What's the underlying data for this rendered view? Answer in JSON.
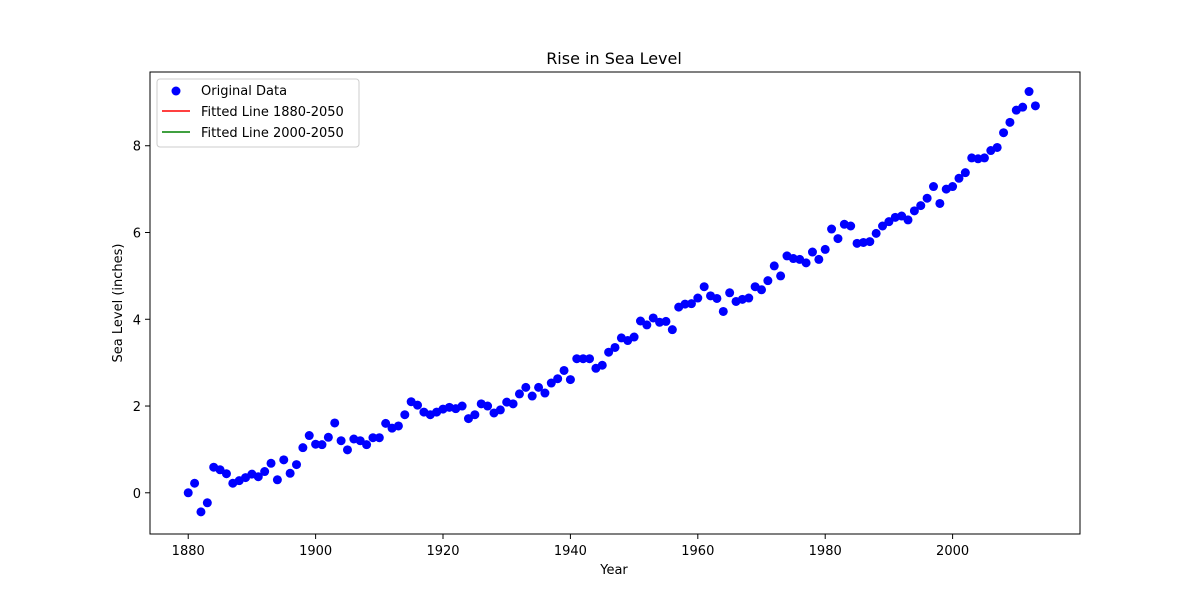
{
  "chart_data": {
    "type": "scatter",
    "title": "Rise in Sea Level",
    "xlabel": "Year",
    "ylabel": "Sea Level (inches)",
    "xlim": [
      1874,
      2020
    ],
    "ylim": [
      -0.95,
      9.7
    ],
    "xticks": [
      1880,
      1900,
      1920,
      1940,
      1960,
      1980,
      2000
    ],
    "yticks": [
      0,
      2,
      4,
      6,
      8
    ],
    "legend_position": "top-left",
    "grid": false,
    "series": [
      {
        "name": "Original Data",
        "kind": "scatter",
        "color": "#0000ff",
        "points": [
          [
            1880,
            0.0
          ],
          [
            1881,
            0.22
          ],
          [
            1882,
            -0.44
          ],
          [
            1883,
            -0.23
          ],
          [
            1884,
            0.59
          ],
          [
            1885,
            0.53
          ],
          [
            1886,
            0.44
          ],
          [
            1887,
            0.22
          ],
          [
            1888,
            0.28
          ],
          [
            1889,
            0.35
          ],
          [
            1890,
            0.43
          ],
          [
            1891,
            0.37
          ],
          [
            1892,
            0.49
          ],
          [
            1893,
            0.68
          ],
          [
            1894,
            0.3
          ],
          [
            1895,
            0.76
          ],
          [
            1896,
            0.45
          ],
          [
            1897,
            0.65
          ],
          [
            1898,
            1.04
          ],
          [
            1899,
            1.32
          ],
          [
            1900,
            1.12
          ],
          [
            1901,
            1.11
          ],
          [
            1902,
            1.28
          ],
          [
            1903,
            1.61
          ],
          [
            1904,
            1.2
          ],
          [
            1905,
            0.99
          ],
          [
            1906,
            1.24
          ],
          [
            1907,
            1.2
          ],
          [
            1908,
            1.11
          ],
          [
            1909,
            1.27
          ],
          [
            1910,
            1.27
          ],
          [
            1911,
            1.6
          ],
          [
            1912,
            1.49
          ],
          [
            1913,
            1.54
          ],
          [
            1914,
            1.8
          ],
          [
            1915,
            2.1
          ],
          [
            1916,
            2.02
          ],
          [
            1917,
            1.86
          ],
          [
            1918,
            1.8
          ],
          [
            1919,
            1.86
          ],
          [
            1920,
            1.93
          ],
          [
            1921,
            1.97
          ],
          [
            1922,
            1.94
          ],
          [
            1923,
            2.0
          ],
          [
            1924,
            1.71
          ],
          [
            1925,
            1.8
          ],
          [
            1926,
            2.05
          ],
          [
            1927,
            2.0
          ],
          [
            1928,
            1.84
          ],
          [
            1929,
            1.91
          ],
          [
            1930,
            2.09
          ],
          [
            1931,
            2.05
          ],
          [
            1932,
            2.28
          ],
          [
            1933,
            2.43
          ],
          [
            1934,
            2.23
          ],
          [
            1935,
            2.43
          ],
          [
            1936,
            2.3
          ],
          [
            1937,
            2.53
          ],
          [
            1938,
            2.63
          ],
          [
            1939,
            2.82
          ],
          [
            1940,
            2.61
          ],
          [
            1941,
            3.09
          ],
          [
            1942,
            3.09
          ],
          [
            1943,
            3.09
          ],
          [
            1944,
            2.87
          ],
          [
            1945,
            2.94
          ],
          [
            1946,
            3.24
          ],
          [
            1947,
            3.35
          ],
          [
            1948,
            3.57
          ],
          [
            1949,
            3.51
          ],
          [
            1950,
            3.59
          ],
          [
            1951,
            3.96
          ],
          [
            1952,
            3.87
          ],
          [
            1953,
            4.03
          ],
          [
            1954,
            3.93
          ],
          [
            1955,
            3.95
          ],
          [
            1956,
            3.76
          ],
          [
            1957,
            4.28
          ],
          [
            1958,
            4.35
          ],
          [
            1959,
            4.36
          ],
          [
            1960,
            4.49
          ],
          [
            1961,
            4.75
          ],
          [
            1962,
            4.54
          ],
          [
            1963,
            4.48
          ],
          [
            1964,
            4.18
          ],
          [
            1965,
            4.61
          ],
          [
            1966,
            4.41
          ],
          [
            1967,
            4.46
          ],
          [
            1968,
            4.49
          ],
          [
            1969,
            4.75
          ],
          [
            1970,
            4.68
          ],
          [
            1971,
            4.89
          ],
          [
            1972,
            5.23
          ],
          [
            1973,
            5.0
          ],
          [
            1974,
            5.46
          ],
          [
            1975,
            5.4
          ],
          [
            1976,
            5.38
          ],
          [
            1977,
            5.3
          ],
          [
            1978,
            5.55
          ],
          [
            1979,
            5.38
          ],
          [
            1980,
            5.61
          ],
          [
            1981,
            6.08
          ],
          [
            1982,
            5.86
          ],
          [
            1983,
            6.19
          ],
          [
            1984,
            6.15
          ],
          [
            1985,
            5.75
          ],
          [
            1986,
            5.77
          ],
          [
            1987,
            5.79
          ],
          [
            1988,
            5.98
          ],
          [
            1989,
            6.15
          ],
          [
            1990,
            6.25
          ],
          [
            1991,
            6.35
          ],
          [
            1992,
            6.38
          ],
          [
            1993,
            6.29
          ],
          [
            1994,
            6.5
          ],
          [
            1995,
            6.62
          ],
          [
            1996,
            6.79
          ],
          [
            1997,
            7.06
          ],
          [
            1998,
            6.67
          ],
          [
            1999,
            7.0
          ],
          [
            2000,
            7.06
          ],
          [
            2001,
            7.25
          ],
          [
            2002,
            7.38
          ],
          [
            2003,
            7.72
          ],
          [
            2004,
            7.7
          ],
          [
            2005,
            7.72
          ],
          [
            2006,
            7.89
          ],
          [
            2007,
            7.96
          ],
          [
            2008,
            8.3
          ],
          [
            2009,
            8.54
          ],
          [
            2010,
            8.82
          ],
          [
            2011,
            8.89
          ],
          [
            2012,
            9.25
          ],
          [
            2013,
            8.92
          ]
        ]
      },
      {
        "name": "Fitted Line 1880-2050",
        "kind": "line",
        "color": "#ff0000",
        "points": []
      },
      {
        "name": "Fitted Line 2000-2050",
        "kind": "line",
        "color": "#008000",
        "points": []
      }
    ]
  }
}
